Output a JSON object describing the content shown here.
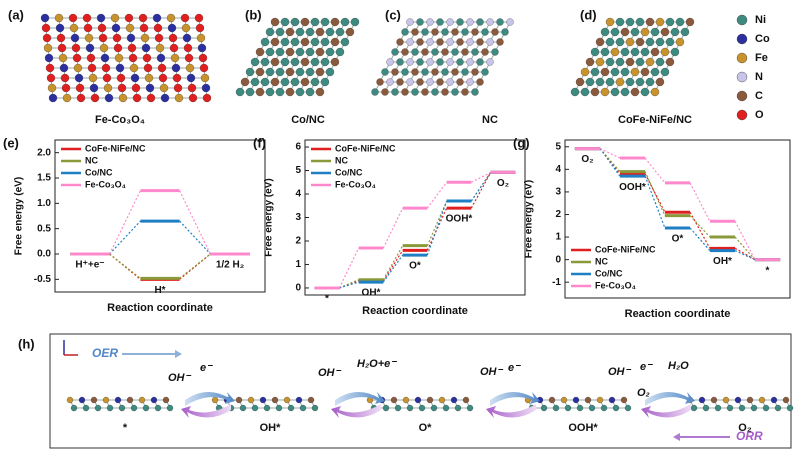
{
  "panels": [
    {
      "label": "(a)",
      "caption": "Fe-Co₃O₄"
    },
    {
      "label": "(b)",
      "caption": "Co/NC"
    },
    {
      "label": "(c)",
      "caption": "NC"
    },
    {
      "label": "(d)",
      "caption": "CoFe-NiFe/NC"
    }
  ],
  "atom_legend": [
    {
      "name": "Ni",
      "color": "#3d8a80"
    },
    {
      "name": "Co",
      "color": "#2b2fa0"
    },
    {
      "name": "Fe",
      "color": "#c8932d"
    },
    {
      "name": "N",
      "color": "#c9c4ea"
    },
    {
      "name": "C",
      "color": "#8b5a3c"
    },
    {
      "name": "O",
      "color": "#e02020"
    }
  ],
  "chart_data": [
    {
      "type": "energy-step",
      "panel_label": "(e)",
      "ylabel": "Free energy (eV)",
      "xlabel": "Reaction coordinate",
      "categories": [
        "H⁺+e⁻",
        "H*",
        "1/2 H₂"
      ],
      "ylim": [
        -0.75,
        2.25
      ],
      "yticks": [
        -0.5,
        {
          "value": 0,
          "label": "0.0"
        },
        0.5,
        {
          "value": 1,
          "label": "1.0"
        },
        1.5,
        {
          "value": 2,
          "label": "2.0"
        }
      ],
      "legend": "upper left",
      "series": [
        {
          "name": "CoFe-NiFe/NC",
          "color": "#e02020",
          "values": [
            0,
            -0.5,
            0
          ]
        },
        {
          "name": "NC",
          "color": "#8a9a3a",
          "values": [
            0,
            -0.48,
            0
          ]
        },
        {
          "name": "Co/NC",
          "color": "#1f7fc4",
          "values": [
            0,
            0.65,
            0
          ]
        },
        {
          "name": "Fe-Co₃O₄",
          "color": "#ff88cc",
          "values": [
            0,
            1.25,
            0
          ]
        }
      ]
    },
    {
      "type": "energy-step",
      "panel_label": "(f)",
      "ylabel": "Free energy (eV)",
      "xlabel": "Reaction coordinate",
      "categories": [
        "*",
        "OH*",
        "O*",
        "OOH*",
        "O₂"
      ],
      "ylim": [
        -0.3,
        6.3
      ],
      "yticks": [
        0,
        1,
        2,
        3,
        4,
        5,
        6
      ],
      "legend": "upper left",
      "series": [
        {
          "name": "CoFe-NiFe/NC",
          "color": "#e02020",
          "values": [
            0,
            0.3,
            1.6,
            3.4,
            4.92
          ]
        },
        {
          "name": "NC",
          "color": "#8a9a3a",
          "values": [
            0,
            0.35,
            1.8,
            3.7,
            4.92
          ]
        },
        {
          "name": "Co/NC",
          "color": "#1f7fc4",
          "values": [
            0,
            0.25,
            1.4,
            3.7,
            4.92
          ]
        },
        {
          "name": "Fe-Co₃O₄",
          "color": "#ff88cc",
          "values": [
            0,
            1.7,
            3.4,
            4.5,
            4.92
          ]
        }
      ]
    },
    {
      "type": "energy-step",
      "panel_label": "(g)",
      "ylabel": "Free energy (eV)",
      "xlabel": "Reaction coordinate",
      "categories": [
        "O₂",
        "OOH*",
        "O*",
        "OH*",
        "*"
      ],
      "ylim": [
        -1.7,
        5.3
      ],
      "yticks": [
        -1,
        0,
        1,
        2,
        3,
        4,
        5
      ],
      "legend": "lower left",
      "series": [
        {
          "name": "CoFe-NiFe/NC",
          "color": "#e02020",
          "values": [
            4.92,
            3.8,
            2.1,
            0.5,
            0
          ]
        },
        {
          "name": "NC",
          "color": "#8a9a3a",
          "values": [
            4.92,
            3.9,
            1.95,
            1.0,
            0
          ]
        },
        {
          "name": "Co/NC",
          "color": "#1f7fc4",
          "values": [
            4.92,
            3.7,
            1.4,
            0.4,
            0
          ]
        },
        {
          "name": "Fe-Co₃O₄",
          "color": "#ff88cc",
          "values": [
            4.92,
            4.5,
            3.4,
            1.7,
            0
          ]
        }
      ]
    }
  ],
  "scheme": {
    "label": "(h)",
    "oer": "OER",
    "orr": "ORR",
    "states": [
      "*",
      "OH*",
      "O*",
      "OOH*",
      "O₂"
    ],
    "species": [
      "OH⁻",
      "e⁻",
      "OH⁻",
      "H₂O+e⁻",
      "OH⁻",
      "e⁻",
      "OH⁻",
      "e⁻",
      "H₂O",
      "O₂"
    ]
  }
}
